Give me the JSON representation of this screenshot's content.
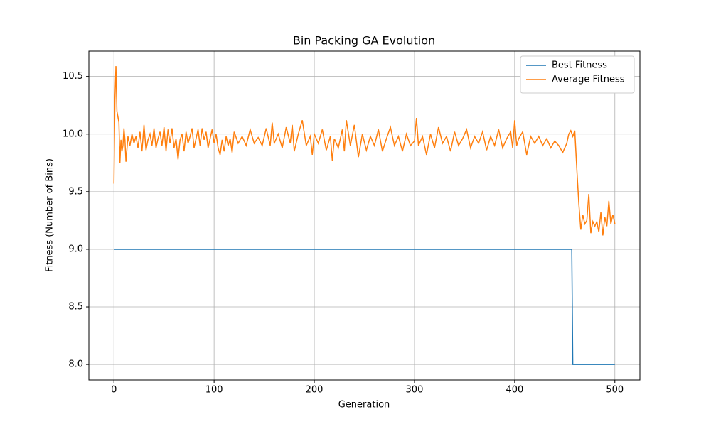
{
  "chart_data": {
    "type": "line",
    "title": "Bin Packing GA Evolution",
    "x_label": "Generation",
    "y_label": "Fitness (Number of Bins)",
    "xlim": [
      -25,
      525
    ],
    "ylim": [
      7.865,
      10.72
    ],
    "xticks": [
      0,
      100,
      200,
      300,
      400,
      500
    ],
    "yticks": [
      {
        "value": 8,
        "label": "8.0"
      },
      8.5,
      {
        "value": 9,
        "label": "9.0"
      },
      9.5,
      {
        "value": 10,
        "label": "10.0"
      },
      10.5
    ],
    "grid": true,
    "legend": "upper right",
    "series": [
      {
        "name": "Best Fitness",
        "color": "#1f77b4",
        "x": [
          0,
          457,
          458,
          500
        ],
        "values": [
          9,
          9,
          8,
          8
        ]
      },
      {
        "name": "Average Fitness",
        "color": "#ff7f0e",
        "x": [
          0,
          1,
          2,
          3,
          4,
          5,
          6,
          7,
          8,
          9,
          10,
          11,
          12,
          14,
          16,
          18,
          20,
          22,
          24,
          26,
          28,
          30,
          32,
          34,
          36,
          38,
          40,
          42,
          44,
          46,
          48,
          50,
          52,
          54,
          56,
          58,
          60,
          62,
          64,
          66,
          68,
          70,
          72,
          74,
          76,
          78,
          80,
          82,
          84,
          86,
          88,
          90,
          92,
          94,
          96,
          98,
          100,
          102,
          104,
          106,
          108,
          110,
          112,
          114,
          116,
          118,
          120,
          124,
          128,
          132,
          136,
          140,
          144,
          148,
          152,
          156,
          158,
          160,
          164,
          168,
          172,
          176,
          178,
          180,
          184,
          188,
          192,
          196,
          198,
          200,
          204,
          208,
          212,
          216,
          218,
          220,
          224,
          228,
          230,
          232,
          236,
          240,
          244,
          248,
          252,
          256,
          260,
          264,
          268,
          272,
          276,
          280,
          284,
          288,
          292,
          296,
          300,
          302,
          304,
          308,
          312,
          316,
          320,
          324,
          328,
          332,
          336,
          340,
          344,
          348,
          352,
          356,
          360,
          364,
          368,
          372,
          376,
          380,
          384,
          388,
          392,
          396,
          398,
          400,
          402,
          404,
          408,
          412,
          416,
          420,
          424,
          428,
          432,
          436,
          440,
          444,
          448,
          452,
          454,
          456,
          458,
          460,
          462,
          464,
          466,
          468,
          470,
          472,
          474,
          476,
          478,
          480,
          482,
          484,
          486,
          488,
          490,
          492,
          494,
          496,
          498,
          500
        ],
        "values": [
          9.57,
          10.3,
          10.59,
          10.2,
          10.15,
          10.1,
          9.75,
          9.95,
          9.85,
          9.9,
          10.05,
          9.95,
          9.76,
          9.98,
          9.9,
          10.0,
          9.92,
          9.98,
          9.88,
          10.02,
          9.85,
          10.08,
          9.86,
          9.95,
          10.0,
          9.9,
          10.05,
          9.88,
          9.96,
          10.02,
          9.9,
          10.06,
          9.85,
          10.04,
          9.92,
          10.05,
          9.88,
          9.96,
          9.78,
          9.95,
          10.0,
          9.85,
          10.02,
          9.92,
          9.98,
          10.05,
          9.88,
          9.96,
          10.04,
          9.9,
          10.05,
          9.95,
          10.02,
          9.88,
          9.96,
          10.04,
          9.92,
          10.0,
          9.88,
          9.82,
          9.95,
          9.85,
          9.98,
          9.9,
          9.96,
          9.84,
          10.02,
          9.92,
          9.98,
          9.9,
          10.04,
          9.92,
          9.97,
          9.9,
          10.05,
          9.9,
          10.1,
          9.92,
          10.0,
          9.88,
          10.06,
          9.92,
          10.08,
          9.85,
          10.0,
          10.12,
          9.9,
          9.98,
          9.82,
          10.0,
          9.92,
          10.04,
          9.86,
          9.98,
          9.77,
          9.96,
          9.88,
          10.04,
          9.85,
          10.12,
          9.9,
          10.08,
          9.8,
          10.0,
          9.86,
          9.98,
          9.9,
          10.04,
          9.85,
          9.96,
          10.06,
          9.9,
          9.98,
          9.85,
          10.0,
          9.9,
          9.94,
          10.14,
          9.9,
          9.98,
          9.82,
          10.0,
          9.88,
          10.06,
          9.92,
          9.98,
          9.85,
          10.02,
          9.9,
          9.96,
          10.04,
          9.88,
          9.98,
          9.92,
          10.02,
          9.86,
          9.98,
          9.9,
          10.04,
          9.88,
          9.96,
          10.02,
          9.88,
          10.12,
          9.9,
          9.96,
          10.02,
          9.82,
          9.98,
          9.92,
          9.98,
          9.9,
          9.96,
          9.88,
          9.94,
          9.9,
          9.84,
          9.92,
          10.0,
          10.03,
          9.98,
          10.03,
          9.7,
          9.4,
          9.17,
          9.3,
          9.22,
          9.25,
          9.48,
          9.14,
          9.24,
          9.2,
          9.24,
          9.15,
          9.32,
          9.12,
          9.28,
          9.2,
          9.42,
          9.22,
          9.3,
          9.22
        ]
      }
    ]
  }
}
